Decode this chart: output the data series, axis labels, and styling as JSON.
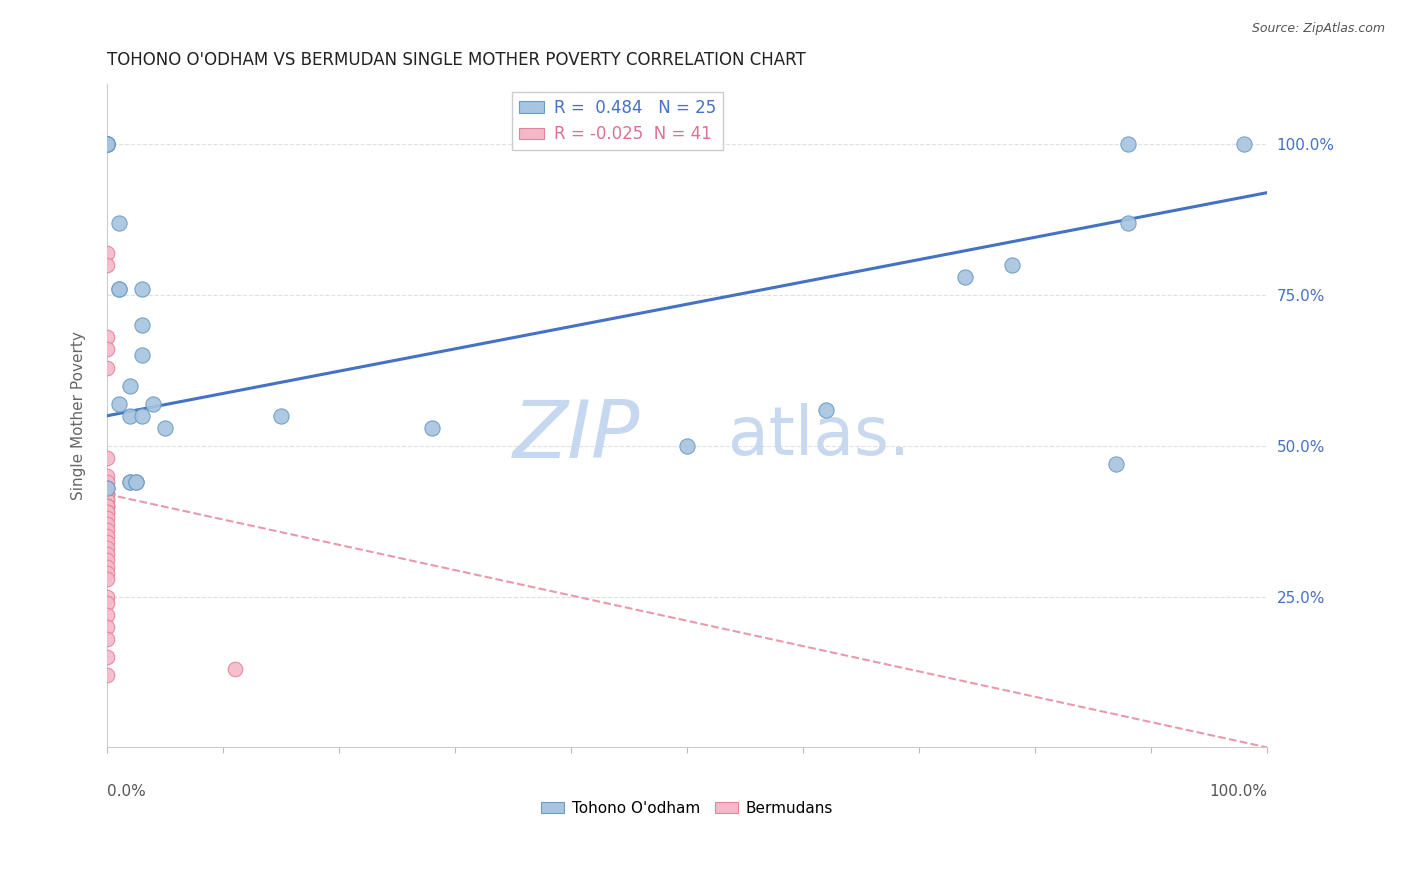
{
  "title": "TOHONO O'ODHAM VS BERMUDAN SINGLE MOTHER POVERTY CORRELATION CHART",
  "source": "Source: ZipAtlas.com",
  "ylabel": "Single Mother Poverty",
  "ytick_values": [
    1.0,
    0.75,
    0.5,
    0.25
  ],
  "xlim": [
    0.0,
    1.0
  ],
  "ylim": [
    0.0,
    1.1
  ],
  "legend_blue_R": "0.484",
  "legend_blue_N": "25",
  "legend_pink_R": "-0.025",
  "legend_pink_N": "41",
  "blue_scatter_x": [
    0.0,
    0.0,
    0.01,
    0.01,
    0.01,
    0.01,
    0.02,
    0.02,
    0.02,
    0.02,
    0.025,
    0.025,
    0.03,
    0.03,
    0.03,
    0.03,
    0.04,
    0.05,
    0.0,
    0.0,
    0.0,
    0.0,
    0.0,
    0.0,
    0.0
  ],
  "blue_scatter_y": [
    1.0,
    1.0,
    0.87,
    0.76,
    0.76,
    0.57,
    0.6,
    0.44,
    0.44,
    0.55,
    0.44,
    0.44,
    0.65,
    0.7,
    0.76,
    0.55,
    0.57,
    0.53,
    1.0,
    1.0,
    1.0,
    1.0,
    1.0,
    1.0,
    0.43
  ],
  "blue_scatter_far_x": [
    0.15,
    0.28,
    0.5,
    0.62,
    0.74,
    0.78,
    0.87,
    0.88,
    0.88,
    0.98
  ],
  "blue_scatter_far_y": [
    0.55,
    0.53,
    0.5,
    0.56,
    0.78,
    0.8,
    0.47,
    0.87,
    1.0,
    1.0
  ],
  "pink_scatter_x": [
    0.0,
    0.0,
    0.0,
    0.0,
    0.0,
    0.0,
    0.0,
    0.0,
    0.0,
    0.0,
    0.0,
    0.0,
    0.0,
    0.0,
    0.0,
    0.0,
    0.0,
    0.0,
    0.0,
    0.0,
    0.0,
    0.0,
    0.0,
    0.0,
    0.0,
    0.0,
    0.0,
    0.0,
    0.0,
    0.0,
    0.0,
    0.0,
    0.0,
    0.0,
    0.0,
    0.0,
    0.0,
    0.0,
    0.0,
    0.0,
    0.11
  ],
  "pink_scatter_y": [
    0.82,
    0.8,
    0.68,
    0.66,
    0.63,
    0.48,
    0.45,
    0.44,
    0.43,
    0.43,
    0.43,
    0.42,
    0.42,
    0.42,
    0.41,
    0.41,
    0.4,
    0.4,
    0.4,
    0.39,
    0.39,
    0.38,
    0.37,
    0.36,
    0.35,
    0.34,
    0.33,
    0.32,
    0.31,
    0.3,
    0.29,
    0.28,
    0.25,
    0.24,
    0.22,
    0.2,
    0.18,
    0.15,
    0.12,
    0.43,
    0.13
  ],
  "blue_line_x": [
    0.0,
    1.0
  ],
  "blue_line_y": [
    0.55,
    0.92
  ],
  "pink_line_x": [
    0.0,
    1.0
  ],
  "pink_line_y": [
    0.42,
    0.0
  ],
  "blue_color": "#a8c4e0",
  "blue_edge_color": "#6b9dc2",
  "pink_color": "#f5b8c8",
  "pink_edge_color": "#e8819a",
  "blue_line_color": "#4472c4",
  "pink_line_color": "#e89aaa",
  "watermark_zip_color": "#c5d8ef",
  "watermark_atlas_color": "#c8d8ef",
  "grid_color": "#e0e0e0",
  "right_axis_color": "#4472c4",
  "title_color": "#222222",
  "background_color": "#ffffff"
}
